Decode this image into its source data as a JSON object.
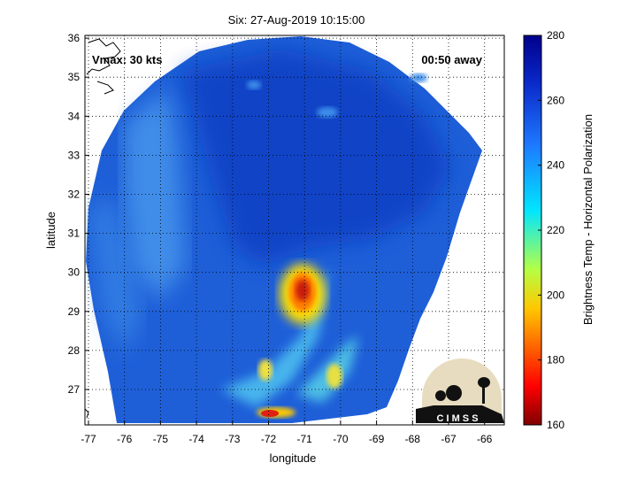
{
  "title": "Six: 27-Aug-2019 10:15:00",
  "overlay": {
    "vmax": "Vmax: 30 kts",
    "away": "00:50 away"
  },
  "axes": {
    "xlabel": "longitude",
    "ylabel": "latitude",
    "x_ticks": [
      "-77",
      "-76",
      "-75",
      "-74",
      "-73",
      "-72",
      "-71",
      "-70",
      "-69",
      "-68",
      "-67",
      "-66"
    ],
    "y_ticks": [
      "27",
      "28",
      "29",
      "30",
      "31",
      "32",
      "33",
      "34",
      "35",
      "36"
    ]
  },
  "colorbar": {
    "label": "Brightness Temp - Horizontal Polarization",
    "ticks": [
      "160",
      "180",
      "200",
      "220",
      "240",
      "260",
      "280"
    ]
  },
  "logo": {
    "text": "C I M S S"
  },
  "colors": {
    "field_base": "#1e5fd8",
    "field_light": "#4fa0f0",
    "field_dark": "#0b2fb0",
    "cold_core": "#c81e10"
  }
}
